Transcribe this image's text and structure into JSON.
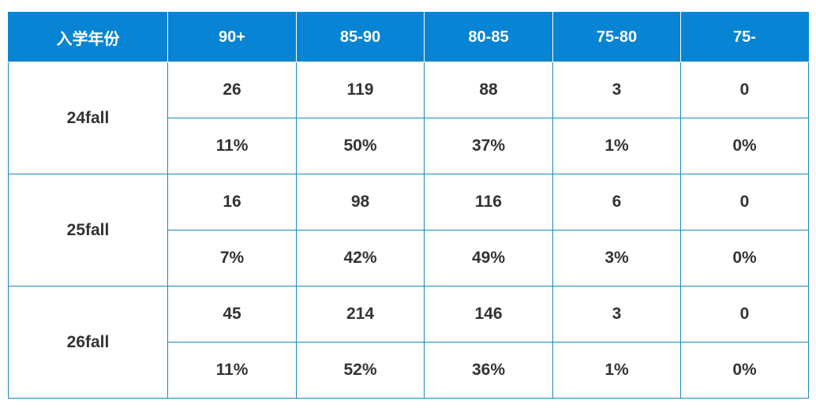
{
  "table": {
    "header": [
      "入学年份",
      "90+",
      "85-90",
      "80-85",
      "75-80",
      "75-"
    ],
    "groups": [
      {
        "label": "24fall",
        "counts": [
          26,
          119,
          88,
          3,
          0
        ],
        "percents": [
          "11%",
          "50%",
          "37%",
          "1%",
          "0%"
        ]
      },
      {
        "label": "25fall",
        "counts": [
          16,
          98,
          116,
          6,
          0
        ],
        "percents": [
          "7%",
          "42%",
          "49%",
          "3%",
          "0%"
        ]
      },
      {
        "label": "26fall",
        "counts": [
          45,
          214,
          146,
          3,
          0
        ],
        "percents": [
          "11%",
          "52%",
          "36%",
          "1%",
          "0%"
        ]
      }
    ]
  }
}
